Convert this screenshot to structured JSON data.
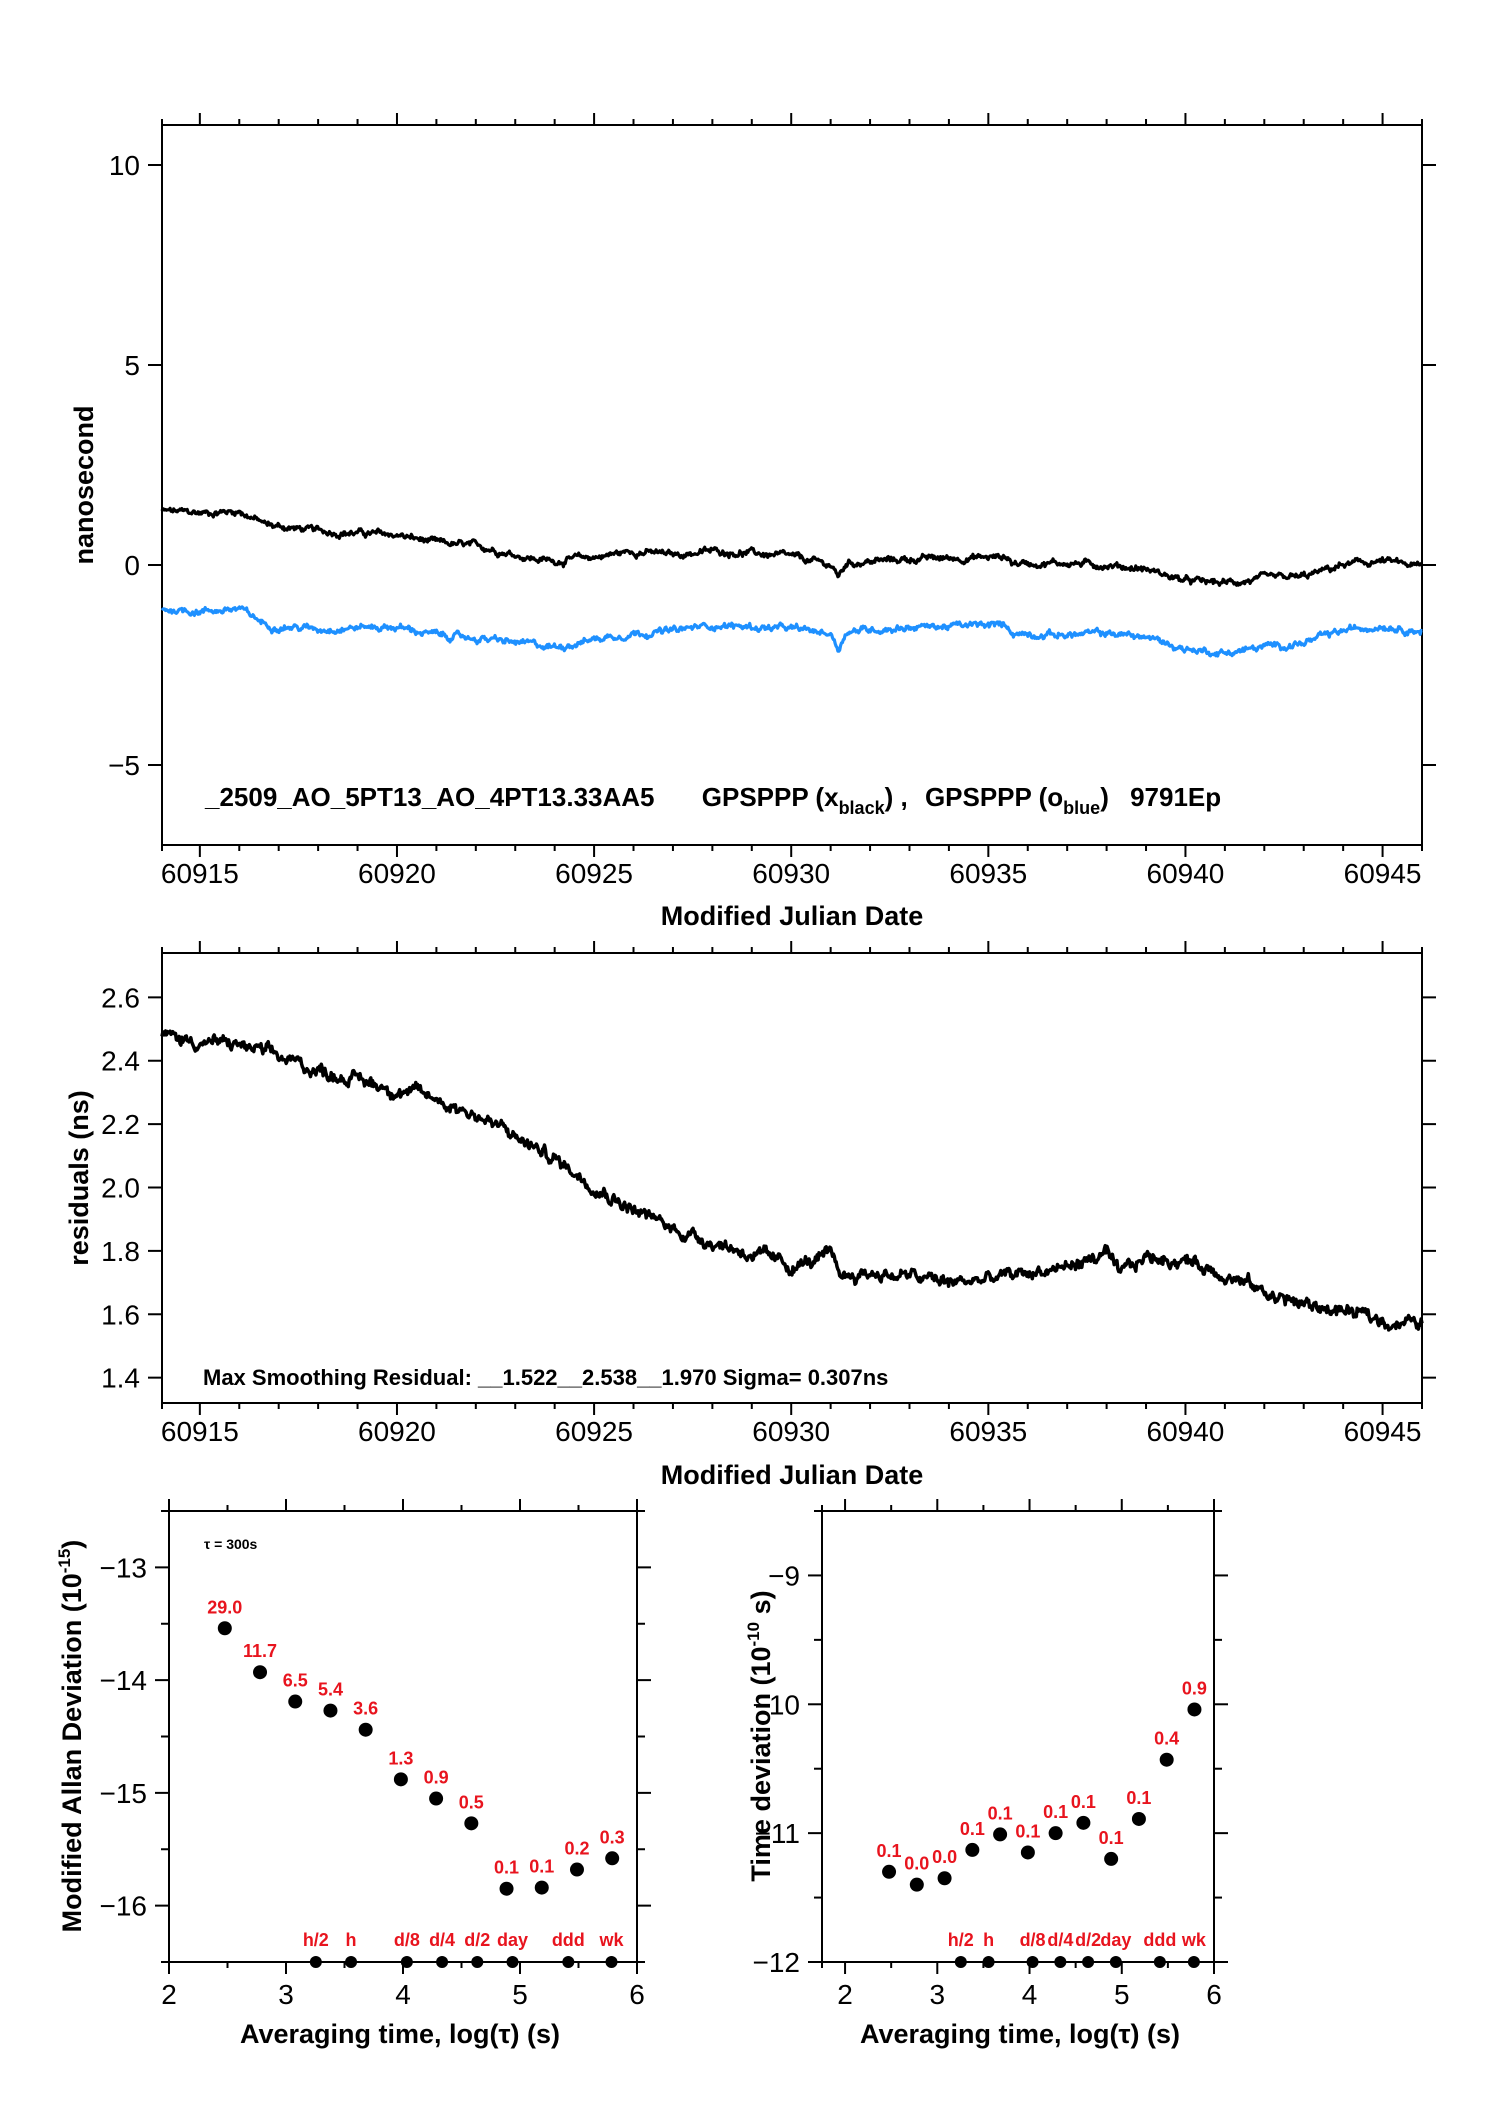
{
  "colors": {
    "series_black": "#000000",
    "series_blue": "#1e90ff",
    "label_red": "#e8141e"
  },
  "chart_data": [
    {
      "id": "time-series",
      "type": "line",
      "title": "",
      "xlabel": "Modified Julian Date",
      "ylabel": "nanosecond",
      "xlim": [
        60914.04,
        60946.0
      ],
      "ylim": [
        -7,
        11
      ],
      "xticks": [
        60915,
        60920,
        60925,
        60930,
        60935,
        60940,
        60945
      ],
      "xtick_labels": [
        "60915",
        "60920",
        "60925",
        "60930",
        "60935",
        "60940",
        "60945"
      ],
      "yticks": [
        10,
        5,
        0,
        -5
      ],
      "ytick_labels": [
        "10",
        "5",
        "0",
        "−5"
      ],
      "grid": false,
      "legend": {
        "placement": "bottom",
        "prefix": "_2509_AO_5PT13_AO_4PT13.33AA5",
        "entry1_name": "GPSPPP (x",
        "entry1_sub": "black",
        "entry1_close": ") ,",
        "entry2_name": "GPSPPP (o",
        "entry2_sub": "blue",
        "entry2_close": ")",
        "suffix": "9791Ep"
      },
      "series": [
        {
          "name": "GPSPPP (x black)",
          "color": "#000000",
          "x": [
            60914.04,
            60915,
            60916,
            60916.7,
            60918,
            60919,
            60920,
            60921,
            60922.2,
            60923.5,
            60924,
            60925,
            60926,
            60927,
            60928,
            60929,
            60930,
            60931,
            60931.2,
            60931.4,
            60933,
            60935.5,
            60935.6,
            60937,
            60938,
            60939,
            60940,
            60941,
            60942,
            60943,
            60944,
            60945,
            60946
          ],
          "y": [
            1.35,
            1.3,
            1.35,
            1.0,
            0.85,
            0.8,
            0.75,
            0.55,
            0.45,
            0.15,
            0.1,
            0.2,
            0.35,
            0.25,
            0.35,
            0.3,
            0.2,
            0.0,
            -0.3,
            0.05,
            0.15,
            0.2,
            0.05,
            0.05,
            0.0,
            -0.1,
            -0.4,
            -0.45,
            -0.35,
            -0.3,
            0.0,
            0.1,
            -0.05
          ]
        },
        {
          "name": "GPSPPP (o blue)",
          "color": "#1e90ff",
          "x": [
            60914.04,
            60915,
            60916,
            60916.7,
            60918,
            60919,
            60920,
            60921,
            60922.2,
            60923.5,
            60924,
            60925,
            60926,
            60927,
            60928,
            60929,
            60930,
            60931,
            60931.2,
            60931.4,
            60933,
            60935.5,
            60935.6,
            60937,
            60938,
            60939,
            60940,
            60941,
            60942,
            60943,
            60944,
            60945,
            60946
          ],
          "y": [
            -1.1,
            -1.15,
            -1.1,
            -1.5,
            -1.6,
            -1.55,
            -1.55,
            -1.75,
            -1.85,
            -2.0,
            -2.05,
            -1.85,
            -1.7,
            -1.65,
            -1.5,
            -1.55,
            -1.6,
            -1.7,
            -2.1,
            -1.65,
            -1.55,
            -1.5,
            -1.7,
            -1.75,
            -1.7,
            -1.8,
            -2.1,
            -2.2,
            -2.05,
            -1.95,
            -1.65,
            -1.5,
            -1.65
          ]
        }
      ]
    },
    {
      "id": "residuals",
      "type": "line",
      "title": "",
      "xlabel": "Modified Julian Date",
      "ylabel": "residuals (ns)",
      "xlim": [
        60914.04,
        60946.0
      ],
      "ylim": [
        1.32,
        2.74
      ],
      "xticks": [
        60915,
        60920,
        60925,
        60930,
        60935,
        60940,
        60945
      ],
      "xtick_labels": [
        "60915",
        "60920",
        "60925",
        "60930",
        "60935",
        "60940",
        "60945"
      ],
      "yticks": [
        2.6,
        2.4,
        2.2,
        2.0,
        1.8,
        1.6,
        1.4
      ],
      "ytick_labels": [
        "2.6",
        "2.4",
        "2.2",
        "2.0",
        "1.8",
        "1.6",
        "1.4"
      ],
      "grid": false,
      "annotation": "Max Smoothing Residual: __1.522__2.538__1.970  Sigma= 0.307ns",
      "series": [
        {
          "name": "residuals",
          "color": "#000000",
          "x": [
            60914.04,
            60915,
            60916,
            60917,
            60918,
            60919,
            60920,
            60921,
            60922,
            60923,
            60924,
            60925,
            60926,
            60927,
            60928,
            60929,
            60930,
            60931,
            60931.3,
            60932,
            60933,
            60934,
            60935,
            60936,
            60937,
            60938,
            60938.3,
            60939,
            60940,
            60941,
            60942,
            60943,
            60944,
            60945,
            60946
          ],
          "y": [
            2.48,
            2.46,
            2.45,
            2.41,
            2.37,
            2.34,
            2.31,
            2.28,
            2.23,
            2.16,
            2.09,
            2.01,
            1.93,
            1.87,
            1.83,
            1.79,
            1.75,
            1.78,
            1.72,
            1.73,
            1.72,
            1.7,
            1.71,
            1.73,
            1.75,
            1.79,
            1.72,
            1.78,
            1.77,
            1.73,
            1.67,
            1.63,
            1.61,
            1.58,
            1.57
          ]
        }
      ]
    },
    {
      "id": "modified-allan-deviation",
      "type": "scatter",
      "title": "",
      "xlabel": "Averaging time, log(τ) (s)",
      "ylabel_main": "Modified Allan Deviation (10",
      "ylabel_sup": "-15",
      "ylabel_close": ")",
      "xlim": [
        2,
        6
      ],
      "ylim": [
        -16.5,
        -12.5
      ],
      "xticks": [
        2,
        3,
        4,
        5,
        6
      ],
      "xtick_labels": [
        "2",
        "3",
        "4",
        "5",
        "6"
      ],
      "yticks": [
        -13,
        -14,
        -15,
        -16
      ],
      "ytick_labels": [
        "−13",
        "−14",
        "−15",
        "−16"
      ],
      "grid": false,
      "annotation": "τ = 300s",
      "points": {
        "x": [
          2.477,
          2.778,
          3.079,
          3.38,
          3.681,
          3.982,
          4.283,
          4.584,
          4.885,
          5.186,
          5.487,
          5.788
        ],
        "y": [
          -13.54,
          -13.93,
          -14.19,
          -14.27,
          -14.44,
          -14.88,
          -15.05,
          -15.27,
          -15.85,
          -15.84,
          -15.68,
          -15.58
        ],
        "labels": [
          "29.0",
          "11.7",
          "6.5",
          "5.4",
          "3.6",
          "1.3",
          "0.9",
          "0.5",
          "0.1",
          "0.1",
          "0.2",
          "0.3"
        ]
      },
      "markers": {
        "x": [
          3.255,
          3.556,
          4.033,
          4.334,
          4.635,
          4.936,
          5.413,
          5.782
        ],
        "labels": [
          "h/2",
          "h",
          "d/8",
          "d/4",
          "d/2",
          "day",
          "ddd",
          "wk"
        ]
      }
    },
    {
      "id": "time-deviation",
      "type": "scatter",
      "title": "",
      "xlabel": "Averaging time, log(τ) (s)",
      "ylabel_main": "Time deviation (10",
      "ylabel_sup": "-10",
      "ylabel_close": " s)",
      "xlim": [
        1.75,
        6
      ],
      "ylim": [
        -12,
        -8.5
      ],
      "xticks": [
        2,
        3,
        4,
        5,
        6
      ],
      "xtick_labels": [
        "2",
        "3",
        "4",
        "5",
        "6"
      ],
      "yticks": [
        -9,
        -10,
        -11,
        -12
      ],
      "ytick_labels": [
        "−9",
        "−10",
        "−11",
        "−12"
      ],
      "grid": false,
      "points": {
        "x": [
          2.477,
          2.778,
          3.079,
          3.38,
          3.681,
          3.982,
          4.283,
          4.584,
          4.885,
          5.186,
          5.487,
          5.788
        ],
        "y": [
          -11.3,
          -11.4,
          -11.35,
          -11.13,
          -11.01,
          -11.15,
          -11.0,
          -10.92,
          -11.2,
          -10.89,
          -10.43,
          -10.04
        ],
        "labels": [
          "0.1",
          "0.0",
          "0.0",
          "0.1",
          "0.1",
          "0.1",
          "0.1",
          "0.1",
          "0.1",
          "0.1",
          "0.4",
          "0.9"
        ]
      },
      "markers": {
        "x": [
          3.255,
          3.556,
          4.033,
          4.334,
          4.635,
          4.936,
          5.413,
          5.782
        ],
        "labels": [
          "h/2",
          "h",
          "d/8",
          "d/4",
          "d/2",
          "day",
          "ddd",
          "wk"
        ]
      }
    }
  ]
}
